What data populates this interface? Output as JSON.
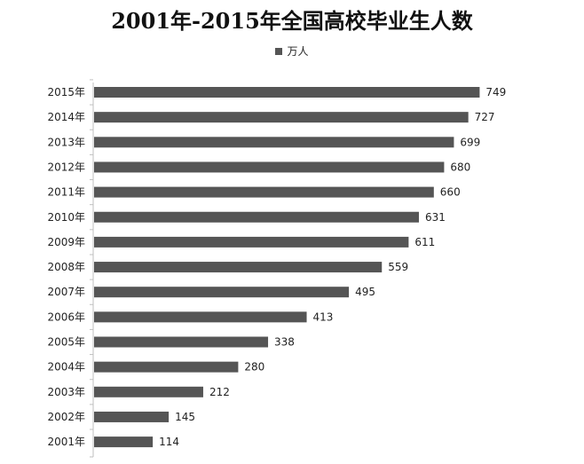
{
  "chart_data": {
    "type": "bar",
    "orientation": "horizontal",
    "title": "2001年-2015年全国高校毕业生人数",
    "xlabel": "",
    "ylabel": "",
    "legend": {
      "position": "top",
      "entries": [
        "万人"
      ]
    },
    "grid": false,
    "xlim": [
      0,
      800
    ],
    "categories": [
      "2015年",
      "2014年",
      "2013年",
      "2012年",
      "2011年",
      "2010年",
      "2009年",
      "2008年",
      "2007年",
      "2006年",
      "2005年",
      "2004年",
      "2003年",
      "2002年",
      "2001年"
    ],
    "series": [
      {
        "name": "万人",
        "color": "#555555",
        "values": [
          749,
          727,
          699,
          680,
          660,
          631,
          611,
          559,
          495,
          413,
          338,
          280,
          212,
          145,
          114
        ]
      }
    ]
  }
}
